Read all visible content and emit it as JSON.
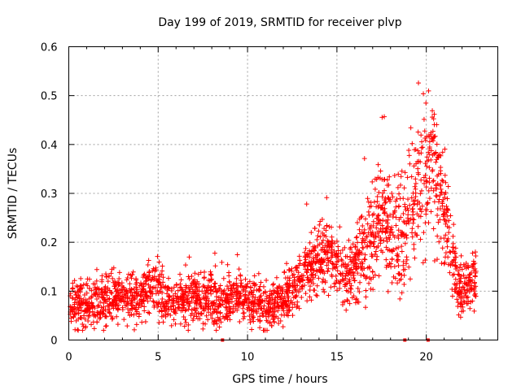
{
  "chart_data": {
    "type": "scatter",
    "title": "Day 199 of 2019, SRMTID for receiver plvp",
    "xlabel": "GPS time / hours",
    "ylabel": "SRMTID / TECUs",
    "xlim": [
      0,
      24
    ],
    "ylim": [
      0,
      0.6
    ],
    "xticks": [
      0,
      5,
      10,
      15,
      20
    ],
    "yticks": [
      0,
      0.1,
      0.2,
      0.3,
      0.4,
      0.5,
      0.6
    ],
    "xtick_labels": [
      "0",
      "5",
      "10",
      "15",
      "20"
    ],
    "ytick_labels": [
      "0",
      "0.1",
      "0.2",
      "0.3",
      "0.4",
      "0.5",
      "0.6"
    ],
    "grid": true,
    "marker": "+",
    "color": "#ff0000",
    "time_range_hours": [
      0,
      22.8
    ],
    "envelope": [
      {
        "x": 0,
        "mean": 0.075,
        "spread": 0.035
      },
      {
        "x": 1,
        "mean": 0.07,
        "spread": 0.035
      },
      {
        "x": 2,
        "mean": 0.08,
        "spread": 0.035
      },
      {
        "x": 3,
        "mean": 0.09,
        "spread": 0.035
      },
      {
        "x": 4,
        "mean": 0.085,
        "spread": 0.035
      },
      {
        "x": 4.8,
        "mean": 0.115,
        "spread": 0.04
      },
      {
        "x": 5.5,
        "mean": 0.07,
        "spread": 0.035
      },
      {
        "x": 6.5,
        "mean": 0.08,
        "spread": 0.035
      },
      {
        "x": 7.5,
        "mean": 0.085,
        "spread": 0.035
      },
      {
        "x": 8.5,
        "mean": 0.075,
        "spread": 0.035
      },
      {
        "x": 9.5,
        "mean": 0.09,
        "spread": 0.035
      },
      {
        "x": 10.5,
        "mean": 0.075,
        "spread": 0.035
      },
      {
        "x": 11.5,
        "mean": 0.065,
        "spread": 0.03
      },
      {
        "x": 12.5,
        "mean": 0.095,
        "spread": 0.035
      },
      {
        "x": 13.5,
        "mean": 0.15,
        "spread": 0.05
      },
      {
        "x": 14.5,
        "mean": 0.18,
        "spread": 0.05
      },
      {
        "x": 15.5,
        "mean": 0.12,
        "spread": 0.045
      },
      {
        "x": 16.5,
        "mean": 0.17,
        "spread": 0.07
      },
      {
        "x": 17.5,
        "mean": 0.25,
        "spread": 0.09
      },
      {
        "x": 18.5,
        "mean": 0.2,
        "spread": 0.08
      },
      {
        "x": 19.5,
        "mean": 0.3,
        "spread": 0.1
      },
      {
        "x": 20.3,
        "mean": 0.38,
        "spread": 0.12
      },
      {
        "x": 21,
        "mean": 0.25,
        "spread": 0.09
      },
      {
        "x": 21.8,
        "mean": 0.1,
        "spread": 0.04
      },
      {
        "x": 22.8,
        "mean": 0.12,
        "spread": 0.04
      }
    ],
    "gap_markers_hours": [
      8.6,
      18.8,
      20.1
    ]
  }
}
